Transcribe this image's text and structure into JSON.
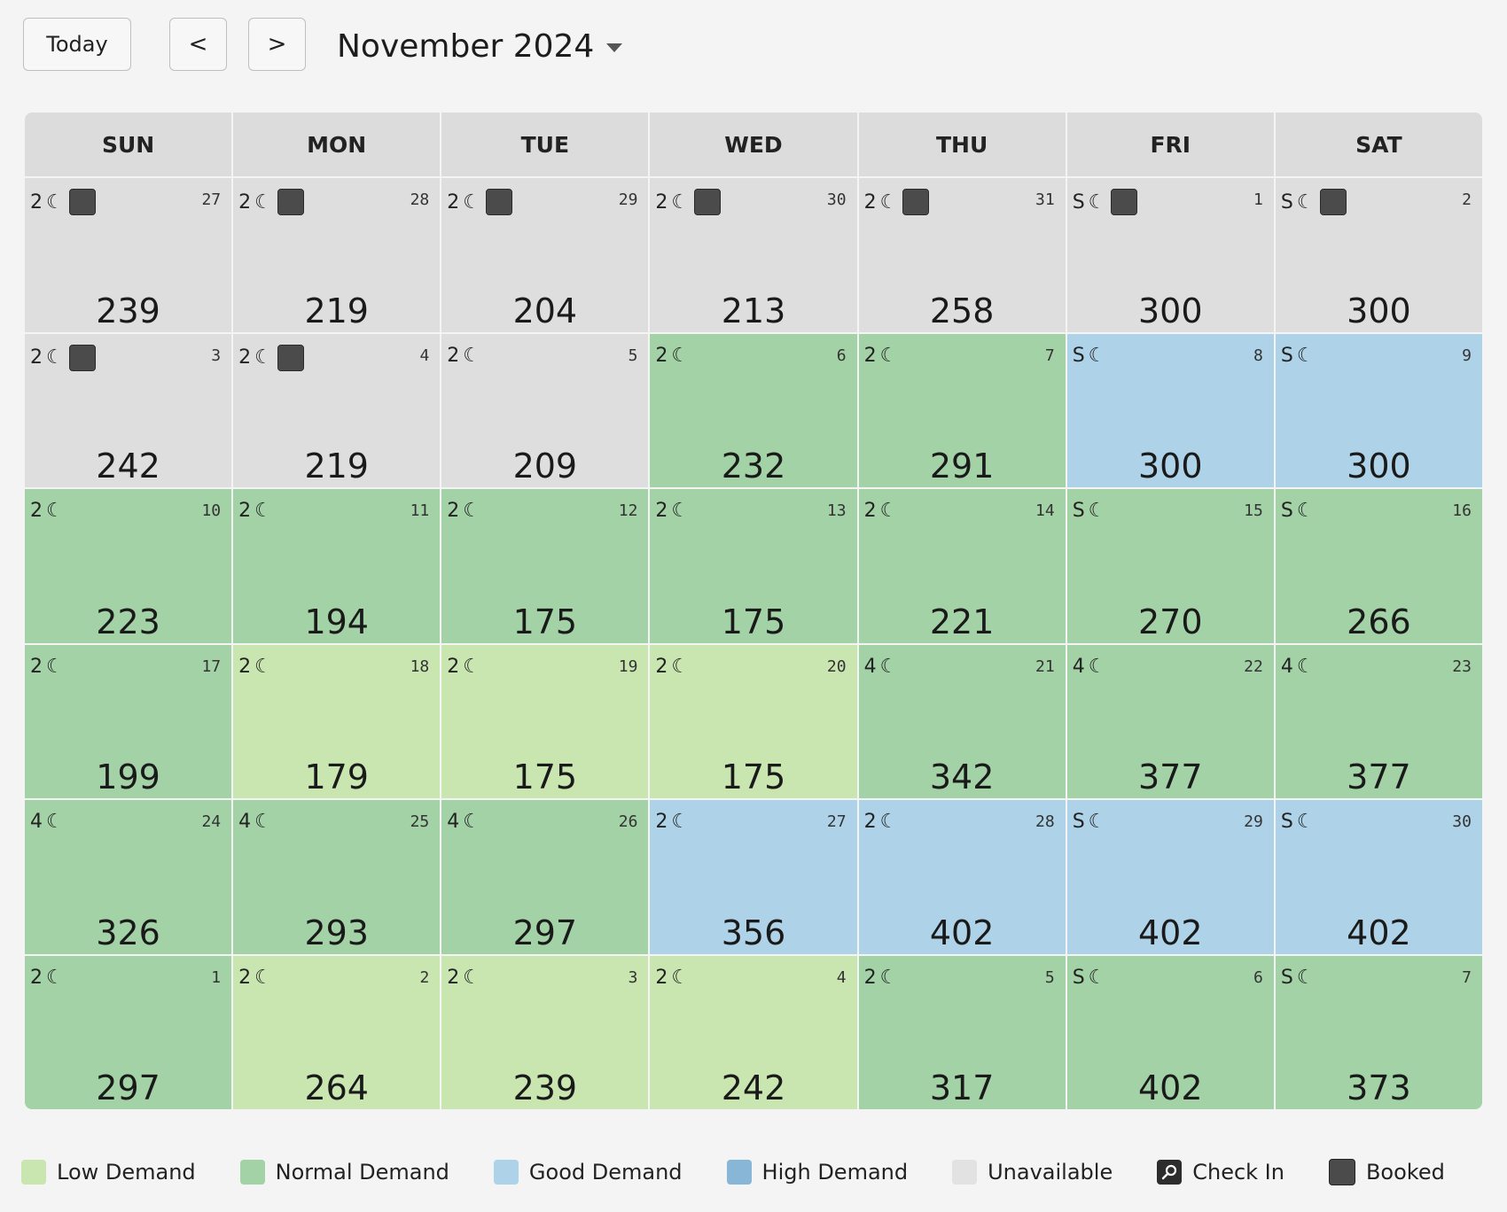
{
  "toolbar": {
    "today_label": "Today",
    "prev_label": "<",
    "next_label": ">",
    "month_label": "November 2024"
  },
  "weekdays": [
    "SUN",
    "MON",
    "TUE",
    "WED",
    "THU",
    "FRI",
    "SAT"
  ],
  "weeks": [
    [
      {
        "nights": "2",
        "day": "27",
        "price": "239",
        "status": "unavailable",
        "booked": true
      },
      {
        "nights": "2",
        "day": "28",
        "price": "219",
        "status": "unavailable",
        "booked": true
      },
      {
        "nights": "2",
        "day": "29",
        "price": "204",
        "status": "unavailable",
        "booked": true
      },
      {
        "nights": "2",
        "day": "30",
        "price": "213",
        "status": "unavailable",
        "booked": true
      },
      {
        "nights": "2",
        "day": "31",
        "price": "258",
        "status": "unavailable",
        "booked": true
      },
      {
        "nights": "S",
        "day": "1",
        "price": "300",
        "status": "unavailable",
        "booked": true
      },
      {
        "nights": "S",
        "day": "2",
        "price": "300",
        "status": "unavailable",
        "booked": true
      }
    ],
    [
      {
        "nights": "2",
        "day": "3",
        "price": "242",
        "status": "unavailable",
        "booked": true
      },
      {
        "nights": "2",
        "day": "4",
        "price": "219",
        "status": "unavailable",
        "booked": true
      },
      {
        "nights": "2",
        "day": "5",
        "price": "209",
        "status": "unavailable",
        "booked": false
      },
      {
        "nights": "2",
        "day": "6",
        "price": "232",
        "status": "normal",
        "booked": false
      },
      {
        "nights": "2",
        "day": "7",
        "price": "291",
        "status": "normal",
        "booked": false
      },
      {
        "nights": "S",
        "day": "8",
        "price": "300",
        "status": "good",
        "booked": false
      },
      {
        "nights": "S",
        "day": "9",
        "price": "300",
        "status": "good",
        "booked": false
      }
    ],
    [
      {
        "nights": "2",
        "day": "10",
        "price": "223",
        "status": "normal",
        "booked": false
      },
      {
        "nights": "2",
        "day": "11",
        "price": "194",
        "status": "normal",
        "booked": false
      },
      {
        "nights": "2",
        "day": "12",
        "price": "175",
        "status": "normal",
        "booked": false
      },
      {
        "nights": "2",
        "day": "13",
        "price": "175",
        "status": "normal",
        "booked": false
      },
      {
        "nights": "2",
        "day": "14",
        "price": "221",
        "status": "normal",
        "booked": false
      },
      {
        "nights": "S",
        "day": "15",
        "price": "270",
        "status": "normal",
        "booked": false
      },
      {
        "nights": "S",
        "day": "16",
        "price": "266",
        "status": "normal",
        "booked": false
      }
    ],
    [
      {
        "nights": "2",
        "day": "17",
        "price": "199",
        "status": "normal",
        "booked": false
      },
      {
        "nights": "2",
        "day": "18",
        "price": "179",
        "status": "low",
        "booked": false
      },
      {
        "nights": "2",
        "day": "19",
        "price": "175",
        "status": "low",
        "booked": false
      },
      {
        "nights": "2",
        "day": "20",
        "price": "175",
        "status": "low",
        "booked": false
      },
      {
        "nights": "4",
        "day": "21",
        "price": "342",
        "status": "normal",
        "booked": false
      },
      {
        "nights": "4",
        "day": "22",
        "price": "377",
        "status": "normal",
        "booked": false
      },
      {
        "nights": "4",
        "day": "23",
        "price": "377",
        "status": "normal",
        "booked": false
      }
    ],
    [
      {
        "nights": "4",
        "day": "24",
        "price": "326",
        "status": "normal",
        "booked": false
      },
      {
        "nights": "4",
        "day": "25",
        "price": "293",
        "status": "normal",
        "booked": false
      },
      {
        "nights": "4",
        "day": "26",
        "price": "297",
        "status": "normal",
        "booked": false
      },
      {
        "nights": "2",
        "day": "27",
        "price": "356",
        "status": "good",
        "booked": false
      },
      {
        "nights": "2",
        "day": "28",
        "price": "402",
        "status": "good",
        "booked": false
      },
      {
        "nights": "S",
        "day": "29",
        "price": "402",
        "status": "good",
        "booked": false
      },
      {
        "nights": "S",
        "day": "30",
        "price": "402",
        "status": "good",
        "booked": false
      }
    ],
    [
      {
        "nights": "2",
        "day": "1",
        "price": "297",
        "status": "normal",
        "booked": false
      },
      {
        "nights": "2",
        "day": "2",
        "price": "264",
        "status": "low",
        "booked": false
      },
      {
        "nights": "2",
        "day": "3",
        "price": "239",
        "status": "low",
        "booked": false
      },
      {
        "nights": "2",
        "day": "4",
        "price": "242",
        "status": "low",
        "booked": false
      },
      {
        "nights": "2",
        "day": "5",
        "price": "317",
        "status": "normal",
        "booked": false
      },
      {
        "nights": "S",
        "day": "6",
        "price": "402",
        "status": "normal",
        "booked": false
      },
      {
        "nights": "S",
        "day": "7",
        "price": "373",
        "status": "normal",
        "booked": false
      }
    ]
  ],
  "moon_glyph": "☾",
  "legend": [
    {
      "key": "low",
      "label": "Low Demand",
      "color": "#c9e6b0"
    },
    {
      "key": "normal",
      "label": "Normal Demand",
      "color": "#a3d2a6"
    },
    {
      "key": "good",
      "label": "Good Demand",
      "color": "#aed3e8"
    },
    {
      "key": "high",
      "label": "High Demand",
      "color": "#87b6d6"
    },
    {
      "key": "unavail",
      "label": "Unavailable",
      "color": "#e2e2e2"
    },
    {
      "key": "checkin",
      "label": "Check In",
      "icon": "key-icon"
    },
    {
      "key": "booked",
      "label": "Booked",
      "color": "#4b4b4b"
    }
  ]
}
